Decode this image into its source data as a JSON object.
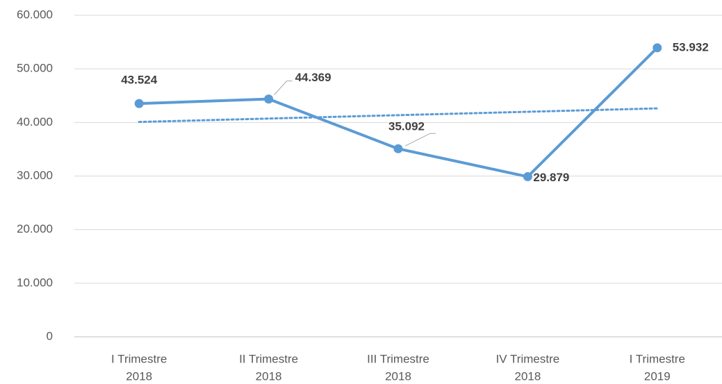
{
  "chart_data": {
    "type": "line",
    "categories": [
      [
        "I Trimestre",
        "2018"
      ],
      [
        "II Trimestre",
        "2018"
      ],
      [
        "III Trimestre",
        "2018"
      ],
      [
        "IV Trimestre",
        "2018"
      ],
      [
        "I Trimestre",
        "2019"
      ]
    ],
    "series": [
      {
        "color": "#5b9bd5",
        "values": [
          43524,
          44369,
          35092,
          29879,
          53932
        ],
        "value_labels": [
          "43.524",
          "44.369",
          "35.092",
          "29.879",
          "53.932"
        ]
      }
    ],
    "trendline": "linear",
    "ylim": [
      0,
      60000
    ],
    "yticks": [
      0,
      {
        "value": 10000,
        "label": "10.000"
      },
      {
        "value": 20000,
        "label": "20.000"
      },
      {
        "value": 30000,
        "label": "30.000"
      },
      {
        "value": 40000,
        "label": "40.000"
      },
      {
        "value": 50000,
        "label": "50.000"
      },
      {
        "value": 60000,
        "label": "60.000"
      }
    ],
    "grid": true
  }
}
